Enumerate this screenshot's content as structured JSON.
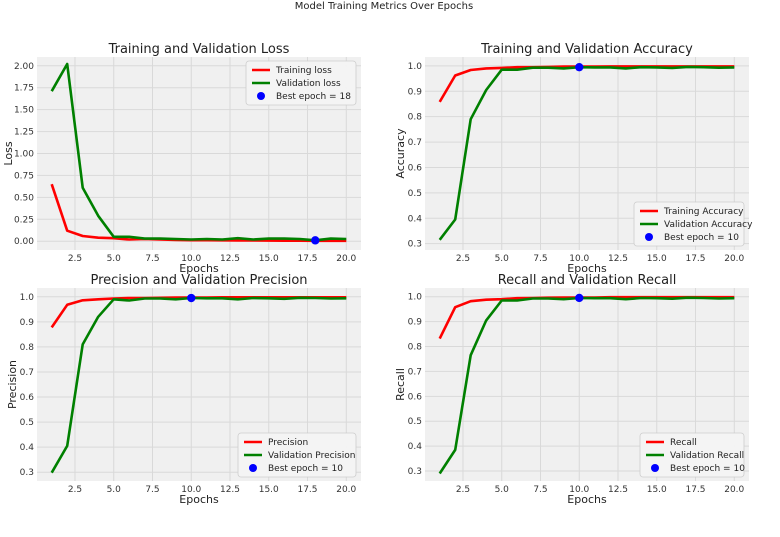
{
  "figure": {
    "suptitle": "Model Training Metrics Over Epochs"
  },
  "colors": {
    "train": "#ff0000",
    "val": "#008000",
    "best": "#0000ff",
    "panel_bg": "#f0f0f0",
    "grid": "#d9d9d9"
  },
  "chart_data": [
    {
      "type": "line",
      "title": "Training and Validation Loss",
      "xlabel": "Epochs",
      "ylabel": "Loss",
      "xlim": [
        0.05,
        20.95
      ],
      "ylim": [
        -0.1,
        2.1
      ],
      "xticks": [
        2.5,
        5.0,
        7.5,
        10.0,
        12.5,
        15.0,
        17.5,
        20.0
      ],
      "xtick_labels": [
        "2.5",
        "5.0",
        "7.5",
        "10.0",
        "12.5",
        "15.0",
        "17.5",
        "20.0"
      ],
      "yticks": [
        0.0,
        0.25,
        0.5,
        0.75,
        1.0,
        1.25,
        1.5,
        1.75,
        2.0
      ],
      "ytick_labels": [
        "0.00",
        "0.25",
        "0.50",
        "0.75",
        "1.00",
        "1.25",
        "1.50",
        "1.75",
        "2.00"
      ],
      "legend_position": "top-right",
      "grid": true,
      "x": [
        1,
        2,
        3,
        4,
        5,
        6,
        7,
        8,
        9,
        10,
        11,
        12,
        13,
        14,
        15,
        16,
        17,
        18,
        19,
        20
      ],
      "series": [
        {
          "name": "Training loss",
          "color": "#ff0000",
          "values": [
            0.65,
            0.12,
            0.06,
            0.04,
            0.035,
            0.02,
            0.025,
            0.02,
            0.015,
            0.012,
            0.012,
            0.01,
            0.008,
            0.008,
            0.007,
            0.006,
            0.006,
            0.005,
            0.005,
            0.005
          ]
        },
        {
          "name": "Validation loss",
          "color": "#008000",
          "values": [
            1.71,
            2.02,
            0.61,
            0.29,
            0.05,
            0.05,
            0.03,
            0.03,
            0.025,
            0.02,
            0.025,
            0.02,
            0.035,
            0.02,
            0.03,
            0.03,
            0.025,
            0.01,
            0.03,
            0.025
          ]
        }
      ],
      "best": {
        "label": "Best epoch = 18",
        "x": 18,
        "y": 0.01,
        "color": "#0000ff"
      }
    },
    {
      "type": "line",
      "title": "Training and Validation Accuracy",
      "xlabel": "Epochs",
      "ylabel": "Accuracy",
      "xlim": [
        0.05,
        20.95
      ],
      "ylim": [
        0.275,
        1.035
      ],
      "xticks": [
        2.5,
        5.0,
        7.5,
        10.0,
        12.5,
        15.0,
        17.5,
        20.0
      ],
      "xtick_labels": [
        "2.5",
        "5.0",
        "7.5",
        "10.0",
        "12.5",
        "15.0",
        "17.5",
        "20.0"
      ],
      "yticks": [
        0.3,
        0.4,
        0.5,
        0.6,
        0.7,
        0.8,
        0.9,
        1.0
      ],
      "ytick_labels": [
        "0.3",
        "0.4",
        "0.5",
        "0.6",
        "0.7",
        "0.8",
        "0.9",
        "1.0"
      ],
      "legend_position": "bottom-right",
      "grid": true,
      "x": [
        1,
        2,
        3,
        4,
        5,
        6,
        7,
        8,
        9,
        10,
        11,
        12,
        13,
        14,
        15,
        16,
        17,
        18,
        19,
        20
      ],
      "series": [
        {
          "name": "Training Accuracy",
          "color": "#ff0000",
          "values": [
            0.858,
            0.962,
            0.984,
            0.99,
            0.992,
            0.995,
            0.995,
            0.996,
            0.997,
            0.997,
            0.997,
            0.998,
            0.998,
            0.998,
            0.998,
            0.998,
            0.998,
            0.998,
            0.998,
            0.998
          ]
        },
        {
          "name": "Validation Accuracy",
          "color": "#008000",
          "values": [
            0.315,
            0.395,
            0.79,
            0.905,
            0.985,
            0.985,
            0.993,
            0.993,
            0.99,
            0.995,
            0.994,
            0.994,
            0.99,
            0.995,
            0.994,
            0.992,
            0.996,
            0.995,
            0.993,
            0.994
          ]
        }
      ],
      "best": {
        "label": "Best epoch = 10",
        "x": 10,
        "y": 0.995,
        "color": "#0000ff"
      }
    },
    {
      "type": "line",
      "title": "Precision and Validation Precision",
      "xlabel": "Epochs",
      "ylabel": "Precision",
      "xlim": [
        0.05,
        20.95
      ],
      "ylim": [
        0.265,
        1.035
      ],
      "xticks": [
        2.5,
        5.0,
        7.5,
        10.0,
        12.5,
        15.0,
        17.5,
        20.0
      ],
      "xtick_labels": [
        "2.5",
        "5.0",
        "7.5",
        "10.0",
        "12.5",
        "15.0",
        "17.5",
        "20.0"
      ],
      "yticks": [
        0.3,
        0.4,
        0.5,
        0.6,
        0.7,
        0.8,
        0.9,
        1.0
      ],
      "ytick_labels": [
        "0.3",
        "0.4",
        "0.5",
        "0.6",
        "0.7",
        "0.8",
        "0.9",
        "1.0"
      ],
      "legend_position": "bottom-right",
      "grid": true,
      "x": [
        1,
        2,
        3,
        4,
        5,
        6,
        7,
        8,
        9,
        10,
        11,
        12,
        13,
        14,
        15,
        16,
        17,
        18,
        19,
        20
      ],
      "series": [
        {
          "name": "Precision",
          "color": "#ff0000",
          "values": [
            0.878,
            0.968,
            0.986,
            0.99,
            0.993,
            0.995,
            0.995,
            0.996,
            0.997,
            0.997,
            0.997,
            0.998,
            0.998,
            0.998,
            0.998,
            0.998,
            0.998,
            0.998,
            0.998,
            0.998
          ]
        },
        {
          "name": "Validation Precision",
          "color": "#008000",
          "values": [
            0.298,
            0.405,
            0.81,
            0.92,
            0.99,
            0.985,
            0.993,
            0.993,
            0.99,
            0.995,
            0.994,
            0.994,
            0.99,
            0.995,
            0.994,
            0.992,
            0.996,
            0.995,
            0.993,
            0.994
          ]
        }
      ],
      "best": {
        "label": "Best epoch = 10",
        "x": 10,
        "y": 0.995,
        "color": "#0000ff"
      }
    },
    {
      "type": "line",
      "title": "Recall and Validation Recall",
      "xlabel": "Epochs",
      "ylabel": "Recall",
      "xlim": [
        0.05,
        20.95
      ],
      "ylim": [
        0.26,
        1.035
      ],
      "xticks": [
        2.5,
        5.0,
        7.5,
        10.0,
        12.5,
        15.0,
        17.5,
        20.0
      ],
      "xtick_labels": [
        "2.5",
        "5.0",
        "7.5",
        "10.0",
        "12.5",
        "15.0",
        "17.5",
        "20.0"
      ],
      "yticks": [
        0.3,
        0.4,
        0.5,
        0.6,
        0.7,
        0.8,
        0.9,
        1.0
      ],
      "ytick_labels": [
        "0.3",
        "0.4",
        "0.5",
        "0.6",
        "0.7",
        "0.8",
        "0.9",
        "1.0"
      ],
      "legend_position": "bottom-right",
      "grid": true,
      "x": [
        1,
        2,
        3,
        4,
        5,
        6,
        7,
        8,
        9,
        10,
        11,
        12,
        13,
        14,
        15,
        16,
        17,
        18,
        19,
        20
      ],
      "series": [
        {
          "name": "Recall",
          "color": "#ff0000",
          "values": [
            0.832,
            0.958,
            0.982,
            0.988,
            0.99,
            0.994,
            0.995,
            0.996,
            0.997,
            0.997,
            0.997,
            0.998,
            0.998,
            0.998,
            0.998,
            0.998,
            0.998,
            0.998,
            0.998,
            0.998
          ]
        },
        {
          "name": "Validation Recall",
          "color": "#008000",
          "values": [
            0.29,
            0.385,
            0.765,
            0.905,
            0.985,
            0.985,
            0.993,
            0.993,
            0.99,
            0.995,
            0.994,
            0.994,
            0.99,
            0.995,
            0.994,
            0.992,
            0.996,
            0.995,
            0.993,
            0.994
          ]
        }
      ],
      "best": {
        "label": "Best epoch = 10",
        "x": 10,
        "y": 0.995,
        "color": "#0000ff"
      }
    }
  ]
}
